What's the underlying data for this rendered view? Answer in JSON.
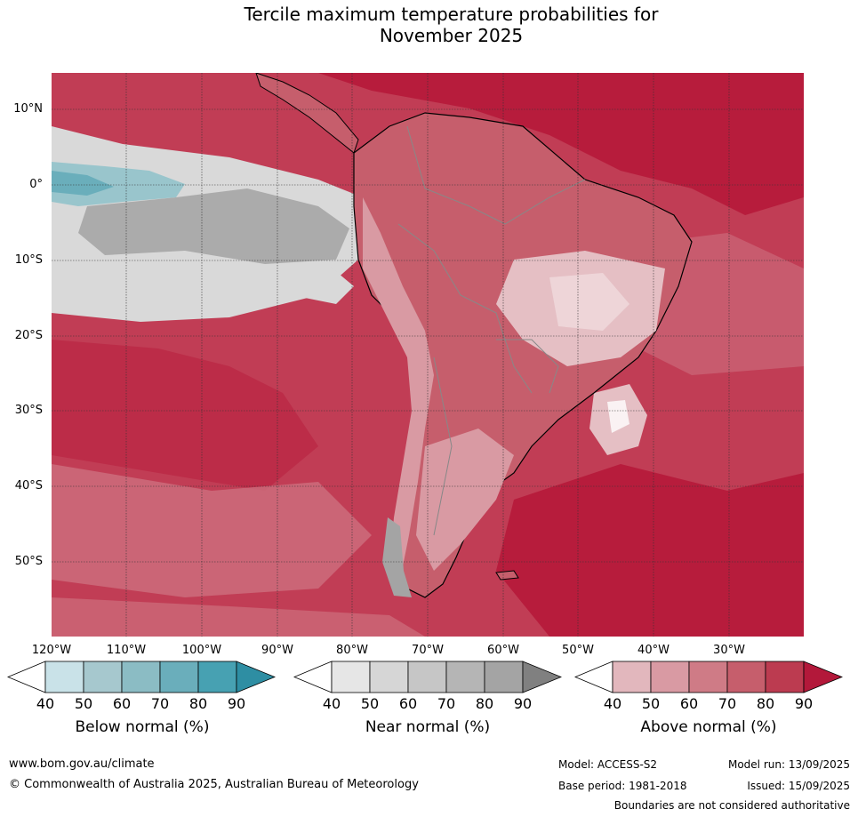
{
  "title_line1": "Tercile maximum temperature probabilities for",
  "title_line2": "November 2025",
  "lat_labels": [
    "10°N",
    "0°",
    "10°S",
    "20°S",
    "30°S",
    "40°S",
    "50°S"
  ],
  "lon_labels": [
    "120°W",
    "110°W",
    "100°W",
    "90°W",
    "80°W",
    "70°W",
    "60°W",
    "50°W",
    "40°W",
    "30°W"
  ],
  "colorbars": [
    {
      "name": "Below normal (%)",
      "ticks": [
        "40",
        "50",
        "60",
        "70",
        "80",
        "90"
      ],
      "colors": [
        "#ffffff",
        "#c9e2e8",
        "#a6c8ce",
        "#8bbcc4",
        "#6aaebb",
        "#47a1b2",
        "#2e8ea3"
      ]
    },
    {
      "name": "Near normal (%)",
      "ticks": [
        "40",
        "50",
        "60",
        "70",
        "80",
        "90"
      ],
      "colors": [
        "#ffffff",
        "#e6e6e6",
        "#d6d6d6",
        "#c6c6c6",
        "#b5b5b5",
        "#a4a4a4",
        "#808080"
      ]
    },
    {
      "name": "Above normal (%)",
      "ticks": [
        "40",
        "50",
        "60",
        "70",
        "80",
        "90"
      ],
      "colors": [
        "#ffffff",
        "#e2b7bd",
        "#d99aa3",
        "#cf7b86",
        "#c65e6c",
        "#bc3b50",
        "#b3183a"
      ]
    }
  ],
  "footer": {
    "website": "www.bom.gov.au/climate",
    "copyright": "© Commonwealth of Australia 2025, Australian Bureau of Meteorology",
    "model": "Model: ACCESS-S2",
    "model_run": "Model run: 13/09/2025",
    "base_period": "Base period: 1981-2018",
    "issued": "Issued: 15/09/2025",
    "disclaimer": "Boundaries are not considered authoritative"
  },
  "map_colors": {
    "ocean_above": "#c13d55",
    "deep_above": "#b71c3c",
    "mid_above": "#cd6f7e",
    "light_above": "#dd9aa5",
    "pale_above": "#e5bfc4",
    "near_light": "#d9d9d9",
    "near_mid": "#ababab",
    "below_light": "#99c5cc",
    "below_mid": "#6aaebb"
  }
}
